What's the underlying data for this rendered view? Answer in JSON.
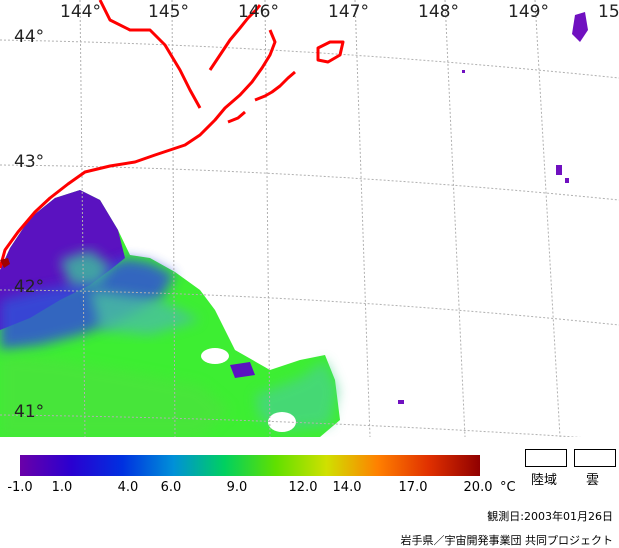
{
  "longitude_labels": [
    "144°",
    "145°",
    "146°",
    "147°",
    "148°",
    "149°",
    "15"
  ],
  "latitude_labels": [
    "44°",
    "43°",
    "42°",
    "41°"
  ],
  "colorbar": {
    "ticks": [
      "-1.0",
      "1.0",
      "4.0",
      "6.0",
      "9.0",
      "12.0",
      "14.0",
      "17.0",
      "20.0"
    ],
    "unit": "°C",
    "colors": [
      "#6a00a8",
      "#2a00d0",
      "#0030e0",
      "#0090d8",
      "#00d060",
      "#60e000",
      "#d0e000",
      "#ff8000",
      "#e03000",
      "#900000"
    ]
  },
  "legend": {
    "land": "陸域",
    "cloud": "雲"
  },
  "observation_date": "観測日:2003年01月26日",
  "credit": "岩手県／宇宙開発事業団 共同プロジェクト"
}
